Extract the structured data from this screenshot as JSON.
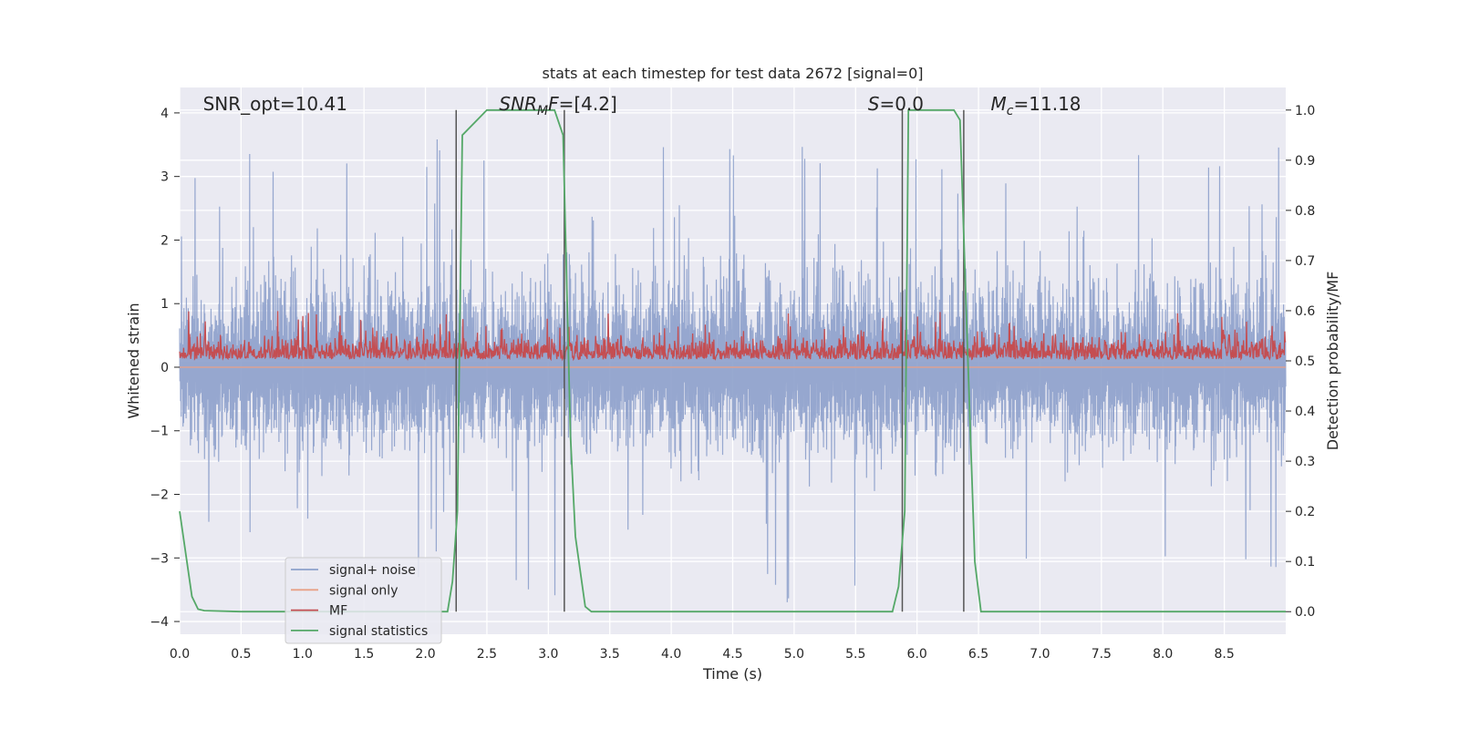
{
  "chart_data": {
    "type": "line",
    "title": "stats at each timestep for test data 2672 [signal=0]",
    "xlabel": "Time (s)",
    "ylabel": "Whitened strain",
    "y2label": "Detection probability/MF",
    "xlim": [
      0,
      9
    ],
    "ylim": [
      -4.2,
      4.4
    ],
    "y2lim": [
      -0.045,
      1.045
    ],
    "xticks": [
      "0.0",
      "0.5",
      "1.0",
      "1.5",
      "2.0",
      "2.5",
      "3.0",
      "3.5",
      "4.0",
      "4.5",
      "5.0",
      "5.5",
      "6.0",
      "6.5",
      "7.0",
      "7.5",
      "8.0",
      "8.5"
    ],
    "yticks": [
      "4",
      "3",
      "2",
      "1",
      "0",
      "−1",
      "−2",
      "−3",
      "−4"
    ],
    "y2ticks": [
      "1.0",
      "0.9",
      "0.8",
      "0.7",
      "0.6",
      "0.5",
      "0.4",
      "0.3",
      "0.2",
      "0.1",
      "0.0"
    ],
    "grid": true,
    "legend_position": "lower-left",
    "annotations": [
      {
        "text": "SNR_opt=10.41",
        "x": 0.19
      },
      {
        "text": "=[4.2]",
        "prefix": "SNR",
        "sub": "M",
        "mid": "F",
        "x": 2.6
      },
      {
        "text": "=0.0",
        "prefix": "S",
        "x": 5.6
      },
      {
        "text": "=11.18",
        "prefix": "M",
        "sub": "c",
        "x": 6.6
      }
    ],
    "series": [
      {
        "name": "signal+ noise",
        "color": "#8da0cb",
        "axis": "left",
        "envelope": {
          "upper_typical": 1.6,
          "upper_peak": 3.6,
          "lower_typical": -1.5,
          "lower_peak": -3.7
        }
      },
      {
        "name": "signal only",
        "color": "#e8a086",
        "axis": "left",
        "values": 0
      },
      {
        "name": "MF",
        "color": "#c44e52",
        "axis": "right",
        "range": [
          0.5,
          0.6
        ]
      },
      {
        "name": "signal statistics",
        "color": "#55a868",
        "axis": "right",
        "x": [
          0.0,
          0.1,
          0.15,
          0.2,
          0.5,
          1.0,
          2.0,
          2.18,
          2.22,
          2.26,
          2.3,
          2.5,
          3.0,
          3.05,
          3.12,
          3.18,
          3.22,
          3.3,
          3.35,
          3.6,
          4.0,
          5.0,
          5.8,
          5.85,
          5.9,
          5.93,
          6.0,
          6.2,
          6.3,
          6.35,
          6.4,
          6.47,
          6.52,
          6.6,
          7.0,
          8.0,
          9.0
        ],
        "y": [
          0.2,
          0.03,
          0.005,
          0.002,
          0.0,
          0.0,
          0.0,
          0.0,
          0.06,
          0.2,
          0.95,
          1.0,
          1.0,
          1.0,
          0.95,
          0.35,
          0.15,
          0.01,
          0.0,
          0.0,
          0.0,
          0.0,
          0.0,
          0.05,
          0.2,
          1.0,
          1.0,
          1.0,
          1.0,
          0.98,
          0.6,
          0.1,
          0.0,
          0.0,
          0.0,
          0.0,
          0.0
        ]
      }
    ],
    "vertical_markers": [
      2.25,
      3.13,
      5.88,
      6.38
    ],
    "vertical_marker_range": [
      0.0,
      1.0
    ]
  }
}
